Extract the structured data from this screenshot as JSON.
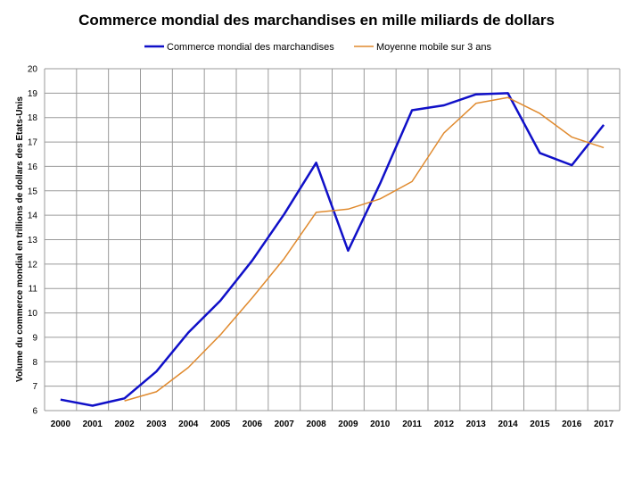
{
  "chart_data": {
    "type": "line",
    "title": "Commerce mondial des marchandises en mille miliards de dollars",
    "ylabel": "Volume du commerce mondial en trillions de dollars des Etats-Unis",
    "xlabel": "",
    "categories": [
      "2000",
      "2001",
      "2002",
      "2003",
      "2004",
      "2005",
      "2006",
      "2007",
      "2008",
      "2009",
      "2010",
      "2011",
      "2012",
      "2013",
      "2014",
      "2015",
      "2016",
      "2017"
    ],
    "ylim": [
      6,
      20
    ],
    "yticks": [
      "6",
      "7",
      "8",
      "9",
      "10",
      "11",
      "12",
      "13",
      "14",
      "15",
      "16",
      "17",
      "18",
      "19",
      "20"
    ],
    "grid": true,
    "legend_position": "top",
    "series": [
      {
        "name": "Commerce mondial des marchandises",
        "color": "#1010c8",
        "values": [
          6.45,
          6.2,
          6.5,
          7.6,
          9.2,
          10.5,
          12.15,
          14.05,
          16.15,
          12.55,
          15.3,
          18.3,
          18.5,
          18.95,
          19.0,
          16.55,
          16.05,
          17.7
        ]
      },
      {
        "name": "Moyenne mobile sur 3 ans",
        "color": "#e08a2e",
        "values": [
          null,
          null,
          6.4,
          6.77,
          7.77,
          9.1,
          10.62,
          12.23,
          14.12,
          14.25,
          14.67,
          15.38,
          17.37,
          18.58,
          18.82,
          18.17,
          17.2,
          16.77
        ]
      }
    ]
  }
}
